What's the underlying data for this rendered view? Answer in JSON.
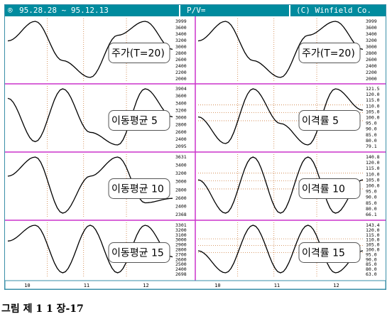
{
  "header": {
    "date_range": "95.28.28 ~ 95.12.13",
    "indicator": "P/V=",
    "copyright": "(C) Winfield Co."
  },
  "colors": {
    "header_bg": "#008b9e",
    "divider": "#cc33cc",
    "curve": "#000000",
    "grid": "#cc7a3a",
    "text": "#000000"
  },
  "x_axis": {
    "labels": [
      {
        "label": "10",
        "pos": 0.1
      },
      {
        "label": "11",
        "pos": 0.46
      },
      {
        "label": "12",
        "pos": 0.82
      }
    ]
  },
  "chart_data": [
    {
      "type": "line",
      "panel": "left-1",
      "label": "주가(T=20)",
      "ticks": [
        "3999",
        "3600",
        "3400",
        "3200",
        "3000",
        "2800",
        "2600",
        "2400",
        "2200",
        "2000"
      ],
      "series": [
        {
          "values": [
            3300,
            3999,
            2600,
            2000,
            3500,
            3999,
            3000
          ]
        }
      ]
    },
    {
      "type": "line",
      "panel": "right-1",
      "label": "주가(T=20)",
      "ticks": [
        "3999",
        "3600",
        "3400",
        "3200",
        "3000",
        "2800",
        "2600",
        "2400",
        "2200",
        "2000"
      ],
      "series": [
        {
          "values": [
            3300,
            3999,
            2600,
            2000,
            3500,
            3999,
            3000
          ]
        }
      ]
    },
    {
      "type": "line",
      "panel": "left-2",
      "label": "이동평균 5",
      "ticks": [
        "3904",
        "3600",
        "3400",
        "3200",
        "3000",
        "2800",
        "2600",
        "2400",
        "2095"
      ],
      "series": [
        {
          "values": [
            3600,
            2200,
            3904,
            2500,
            2095,
            3904,
            3000
          ]
        }
      ]
    },
    {
      "type": "line",
      "panel": "right-2",
      "label": "이격률 5",
      "ticks": [
        "121.5",
        "120.0",
        "115.0",
        "110.0",
        "105.0",
        "100.0",
        "95.0",
        "90.0",
        "85.0",
        "80.0",
        "79.1"
      ],
      "series": [
        {
          "values": [
            100,
            80,
            121,
            95,
            79,
            121,
            105
          ]
        }
      ]
    },
    {
      "type": "line",
      "panel": "left-3",
      "label": "이동평균 10",
      "ticks": [
        "3631",
        "3400",
        "3200",
        "3000",
        "2800",
        "2600",
        "2400",
        "2368"
      ],
      "series": [
        {
          "values": [
            3200,
            3631,
            2368,
            3200,
            3631,
            2600,
            2700
          ]
        }
      ]
    },
    {
      "type": "line",
      "panel": "right-3",
      "label": "이격률 10",
      "ticks": [
        "140.8",
        "120.0",
        "115.0",
        "110.0",
        "105.0",
        "100.0",
        "95.0",
        "90.0",
        "85.0",
        "80.0",
        "66.1"
      ],
      "series": [
        {
          "values": [
            110,
            66,
            140,
            66,
            140,
            66,
            110
          ]
        }
      ]
    },
    {
      "type": "line",
      "panel": "left-4",
      "label": "이동평균 15",
      "ticks": [
        "3301",
        "3200",
        "3100",
        "3000",
        "2900",
        "2800",
        "2700",
        "2600",
        "2500",
        "2400",
        "2698"
      ],
      "series": [
        {
          "values": [
            3100,
            3301,
            2698,
            3301,
            2698,
            3301,
            2900
          ]
        }
      ]
    },
    {
      "type": "line",
      "panel": "right-4",
      "label": "이격률 15",
      "ticks": [
        "143.4",
        "120.0",
        "115.0",
        "110.0",
        "105.0",
        "100.0",
        "95.0",
        "90.0",
        "85.0",
        "80.0",
        "63.0"
      ],
      "series": [
        {
          "values": [
            100,
            63,
            143,
            63,
            143,
            63,
            100
          ]
        }
      ]
    }
  ],
  "caption": "그림 제 1 1 장-17"
}
